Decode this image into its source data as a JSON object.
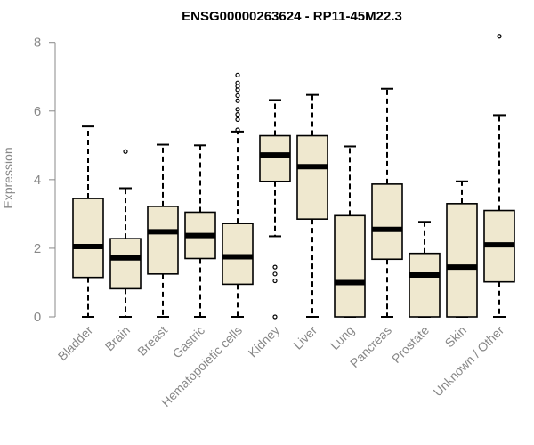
{
  "chart_data": {
    "type": "boxplot",
    "title": "ENSG00000263624 - RP11-45M22.3",
    "ylabel": "Expression",
    "xlabel": "",
    "ylim": [
      0,
      8.2
    ],
    "yticks": [
      0,
      2,
      4,
      6,
      8
    ],
    "grid": false,
    "box_color": "#efe8cf",
    "categories": [
      "Bladder",
      "Brain",
      "Breast",
      "Gastric",
      "Hematopoietic cells",
      "Kidney",
      "Liver",
      "Lung",
      "Pancreas",
      "Prostate",
      "Skin",
      "Unknown / Other"
    ],
    "boxes": [
      {
        "min": 0,
        "q1": 1.15,
        "median": 2.05,
        "q3": 3.45,
        "max": 5.55,
        "outliers": []
      },
      {
        "min": 0,
        "q1": 0.82,
        "median": 1.72,
        "q3": 2.28,
        "max": 3.75,
        "outliers": [
          4.82
        ]
      },
      {
        "min": 0,
        "q1": 1.25,
        "median": 2.48,
        "q3": 3.22,
        "max": 5.02,
        "outliers": []
      },
      {
        "min": 0,
        "q1": 1.7,
        "median": 2.37,
        "q3": 3.05,
        "max": 5.0,
        "outliers": []
      },
      {
        "min": 0,
        "q1": 0.95,
        "median": 1.75,
        "q3": 2.72,
        "max": 5.4,
        "outliers": [
          5.45,
          5.75,
          5.9,
          6.05,
          6.3,
          6.45,
          6.62,
          6.72,
          6.82,
          7.05
        ]
      },
      {
        "min": 2.35,
        "q1": 3.95,
        "median": 4.72,
        "q3": 5.28,
        "max": 6.32,
        "outliers": [
          1.05,
          1.25,
          1.45,
          0.0
        ]
      },
      {
        "min": 0,
        "q1": 2.85,
        "median": 4.38,
        "q3": 5.28,
        "max": 6.47,
        "outliers": []
      },
      {
        "min": 0,
        "q1": 0,
        "median": 1.0,
        "q3": 2.95,
        "max": 4.97,
        "outliers": []
      },
      {
        "min": 0,
        "q1": 1.68,
        "median": 2.55,
        "q3": 3.87,
        "max": 6.65,
        "outliers": []
      },
      {
        "min": 0,
        "q1": 0,
        "median": 1.22,
        "q3": 1.85,
        "max": 2.77,
        "outliers": []
      },
      {
        "min": 0,
        "q1": 0,
        "median": 1.45,
        "q3": 3.3,
        "max": 3.95,
        "outliers": []
      },
      {
        "min": 0,
        "q1": 1.02,
        "median": 2.1,
        "q3": 3.1,
        "max": 5.88,
        "outliers": [
          8.18
        ]
      }
    ]
  }
}
